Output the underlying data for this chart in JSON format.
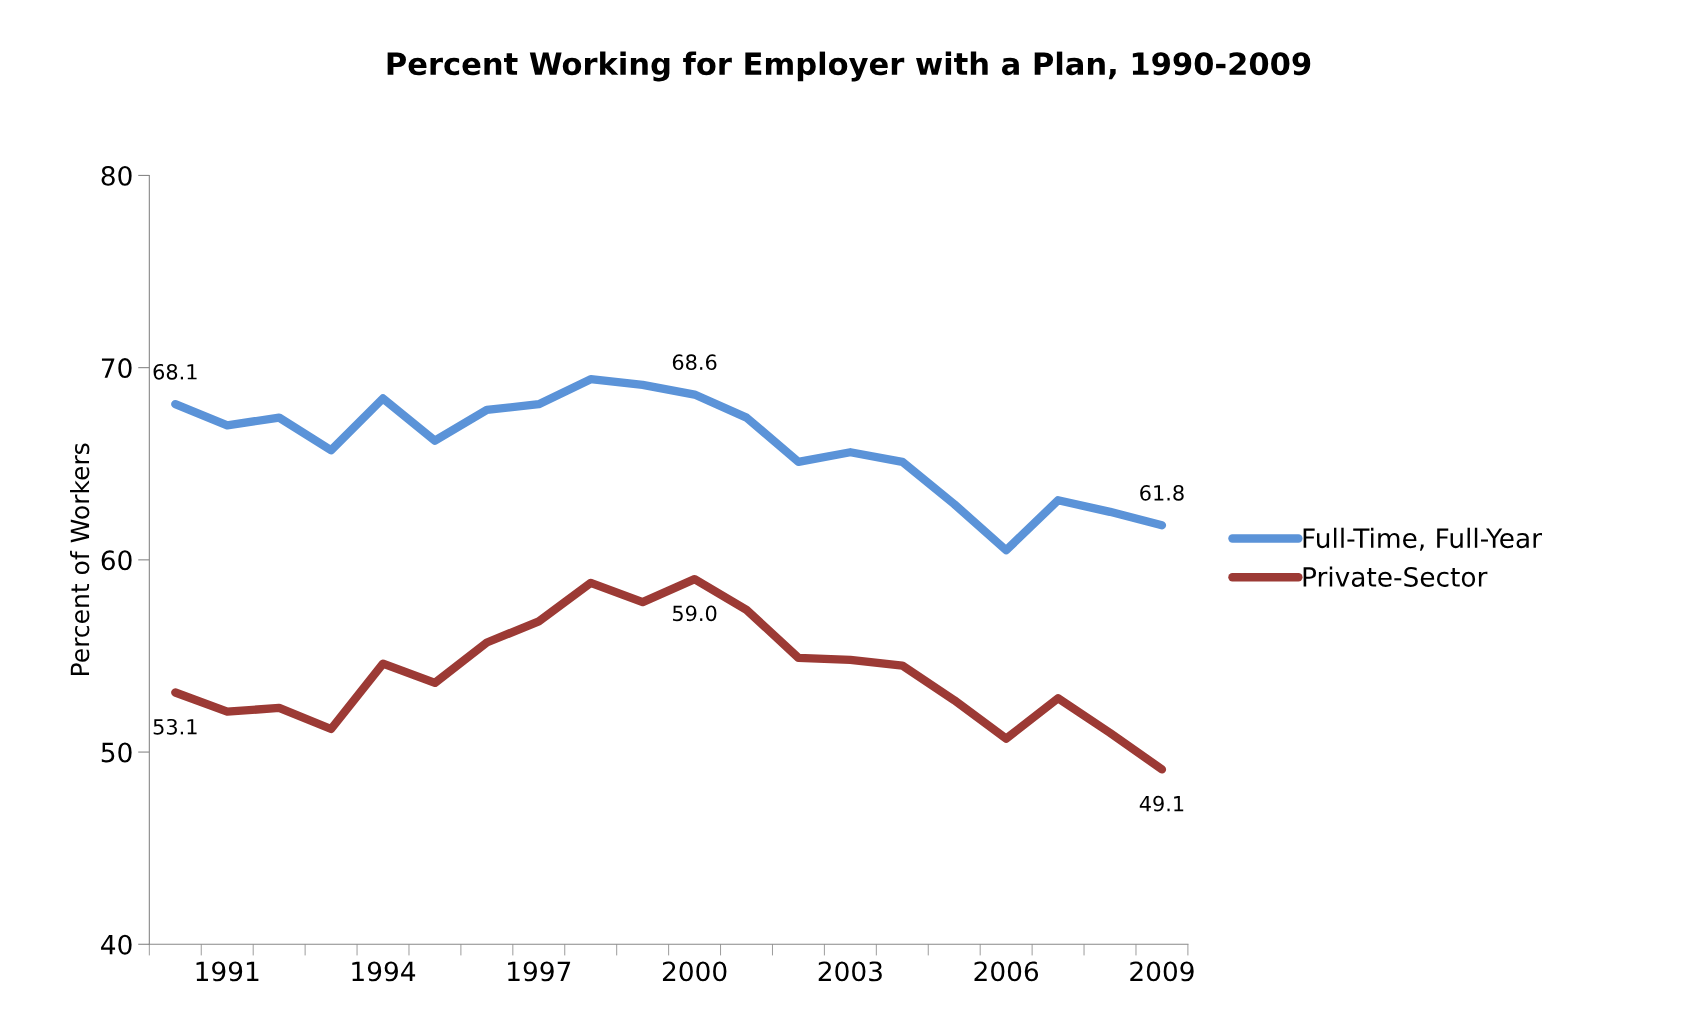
{
  "chart_data": {
    "type": "line",
    "title": "Percent Working for Employer with a Plan, 1990-2009",
    "ylabel": "Percent of Workers",
    "x": [
      1990,
      1991,
      1992,
      1993,
      1994,
      1995,
      1996,
      1997,
      1998,
      1999,
      2000,
      2001,
      2002,
      2003,
      2004,
      2005,
      2006,
      2007,
      2008,
      2009
    ],
    "series": [
      {
        "name": "Full-Time, Full-Year",
        "color": "#5b93d8",
        "values": [
          68.1,
          67.0,
          67.4,
          65.7,
          68.4,
          66.2,
          67.8,
          68.1,
          69.4,
          69.1,
          68.6,
          67.4,
          65.1,
          65.6,
          65.1,
          62.9,
          60.5,
          63.1,
          62.5,
          61.8
        ],
        "value_labels": [
          "68.1",
          null,
          null,
          null,
          null,
          null,
          null,
          null,
          null,
          null,
          "68.6",
          null,
          null,
          null,
          null,
          null,
          null,
          null,
          null,
          "61.8"
        ]
      },
      {
        "name": "Private-Sector",
        "color": "#9c3a35",
        "values": [
          53.1,
          52.1,
          52.3,
          51.2,
          54.6,
          53.6,
          55.7,
          56.8,
          58.8,
          57.8,
          59.0,
          57.4,
          54.9,
          54.8,
          54.5,
          52.7,
          50.7,
          52.8,
          51.0,
          49.1
        ],
        "value_labels": [
          "53.1",
          null,
          null,
          null,
          null,
          null,
          null,
          null,
          null,
          null,
          "59.0",
          null,
          null,
          null,
          null,
          null,
          null,
          null,
          null,
          "49.1"
        ]
      }
    ],
    "xlim": [
      1989.5,
      2009.5
    ],
    "xticks": [
      {
        "value": 1989.5,
        "label": null
      },
      {
        "value": 1990.5,
        "label": null
      },
      {
        "value": 1991.5,
        "label": null
      },
      {
        "value": 1992.5,
        "label": null
      },
      {
        "value": 1993.5,
        "label": null
      },
      {
        "value": 1994.5,
        "label": null
      },
      {
        "value": 1995.5,
        "label": null
      },
      {
        "value": 1996.5,
        "label": null
      },
      {
        "value": 1997.5,
        "label": null
      },
      {
        "value": 1998.5,
        "label": null
      },
      {
        "value": 1999.5,
        "label": null
      },
      {
        "value": 2000.5,
        "label": null
      },
      {
        "value": 2001.5,
        "label": null
      },
      {
        "value": 2002.5,
        "label": null
      },
      {
        "value": 2003.5,
        "label": null
      },
      {
        "value": 2004.5,
        "label": null
      },
      {
        "value": 2005.5,
        "label": null
      },
      {
        "value": 2006.5,
        "label": null
      },
      {
        "value": 2007.5,
        "label": null
      },
      {
        "value": 2008.5,
        "label": null
      },
      {
        "value": 2009.5,
        "label": null
      },
      1991,
      1994,
      1997,
      2000,
      2003,
      2006,
      2009
    ],
    "ylim": [
      40,
      80
    ],
    "yticks": [
      40,
      50,
      60,
      70,
      80
    ],
    "grid": false,
    "legend": "right",
    "marker": "none",
    "line_style": "solid"
  }
}
